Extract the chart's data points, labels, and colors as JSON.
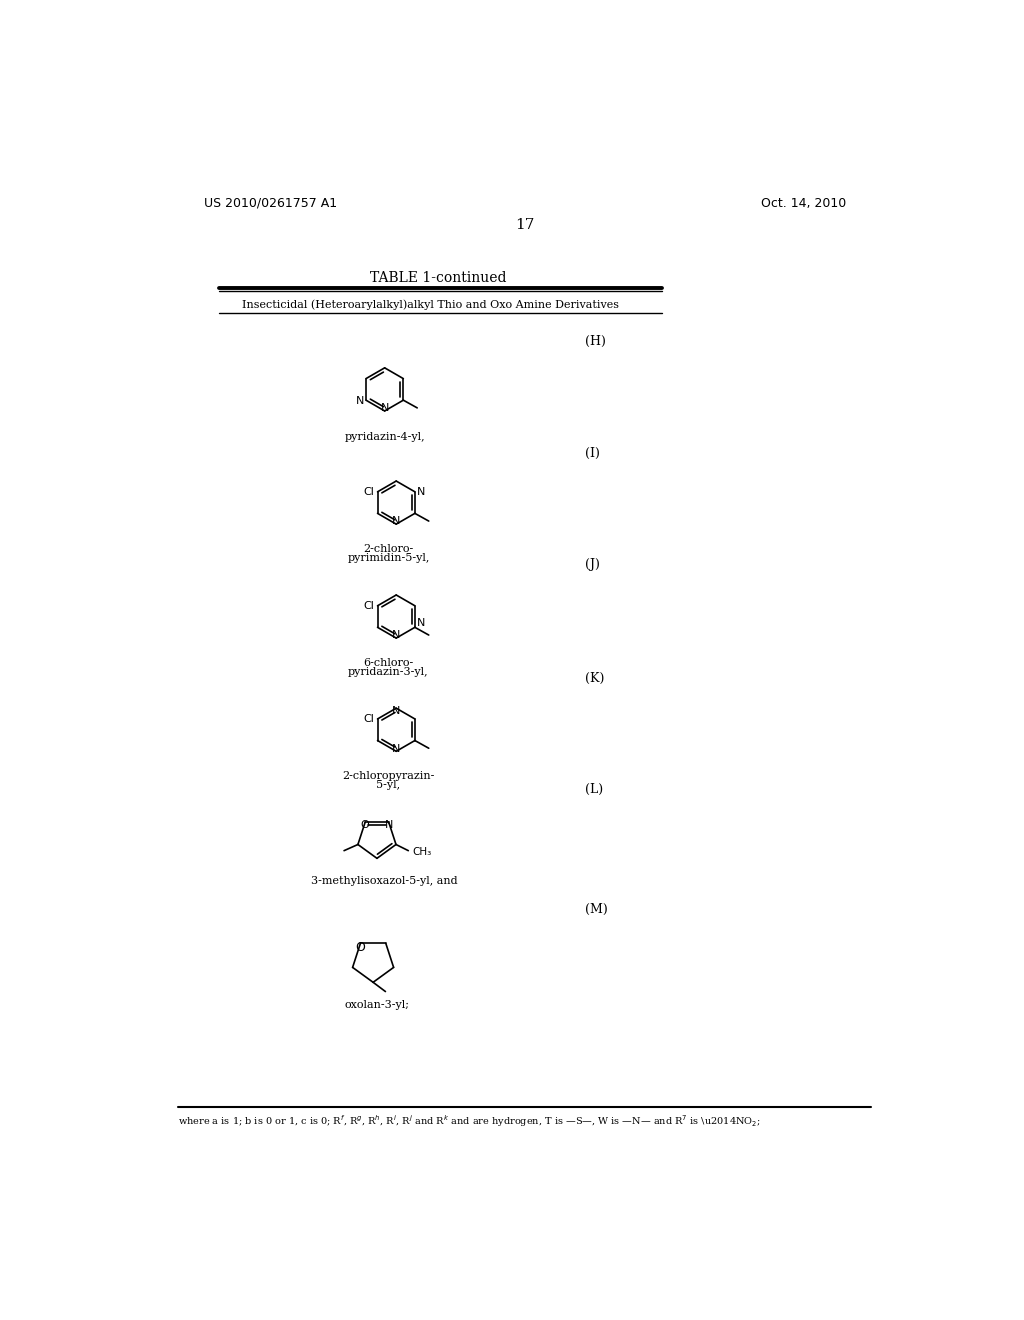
{
  "page_number": "17",
  "patent_number": "US 2010/0261757 A1",
  "patent_date": "Oct. 14, 2010",
  "table_title": "TABLE 1-continued",
  "table_subtitle": "Insecticidal (Heteroarylalkyl)alkyl Thio and Oxo Amine Derivatives",
  "footer_text": "where a is 1; b is 0 or 1, c is 0; Rf, Rg, Rh, Ri, Rj and Rk and are hydrogen, T is S, W is N and R7 is NO2;",
  "bg_color": "#ffffff",
  "text_color": "#000000"
}
